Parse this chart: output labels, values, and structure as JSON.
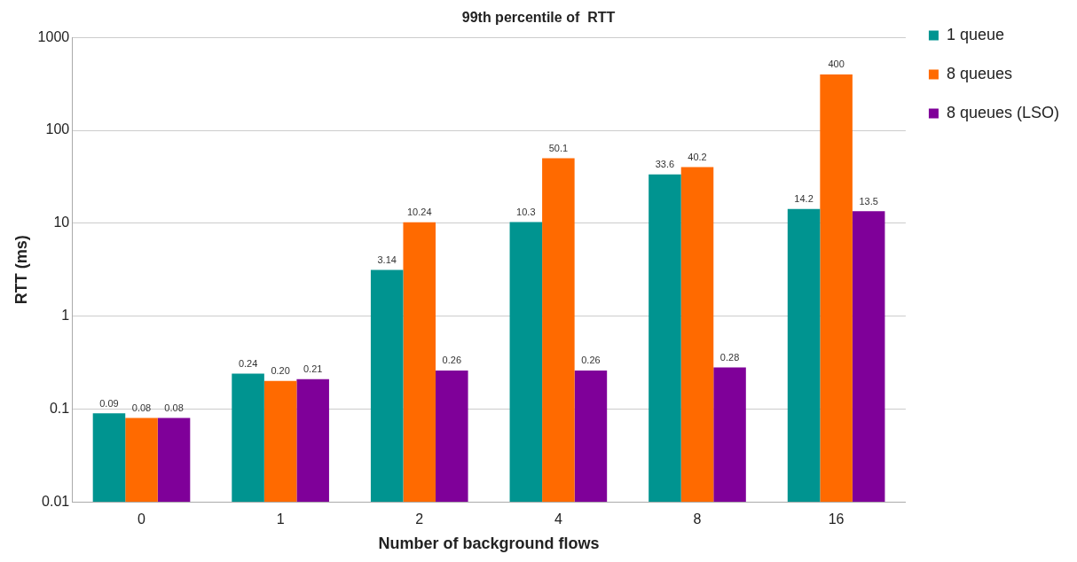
{
  "chart_data": {
    "type": "bar",
    "title": "99th percentile of  RTT",
    "xlabel": "Number of background flows",
    "ylabel": "RTT (ms)",
    "categories": [
      "0",
      "1",
      "2",
      "4",
      "8",
      "16"
    ],
    "series": [
      {
        "name": "1 queue",
        "color": "#009490",
        "values": [
          0.09,
          0.24,
          3.14,
          10.3,
          33.6,
          14.2
        ],
        "value_labels": [
          "0.09",
          "0.24",
          "3.14",
          "10.3",
          "33.6",
          "14.2"
        ]
      },
      {
        "name": "8 queues",
        "color": "#ff6a00",
        "values": [
          0.08,
          0.2,
          10.24,
          50.1,
          40.2,
          400
        ],
        "value_labels": [
          "0.08",
          "0.20",
          "10.24",
          "50.1",
          "40.2",
          "400"
        ]
      },
      {
        "name": "8 queues (LSO)",
        "color": "#7f0099",
        "values": [
          0.08,
          0.21,
          0.26,
          0.26,
          0.28,
          13.5
        ],
        "value_labels": [
          "0.08",
          "0.21",
          "0.26",
          "0.26",
          "0.28",
          "13.5"
        ]
      }
    ],
    "log": "y",
    "ylim": [
      0.01,
      1000
    ],
    "yticks": [
      0.01,
      0.1,
      1,
      10,
      100,
      1000
    ],
    "grid": "y",
    "legend": "right"
  }
}
